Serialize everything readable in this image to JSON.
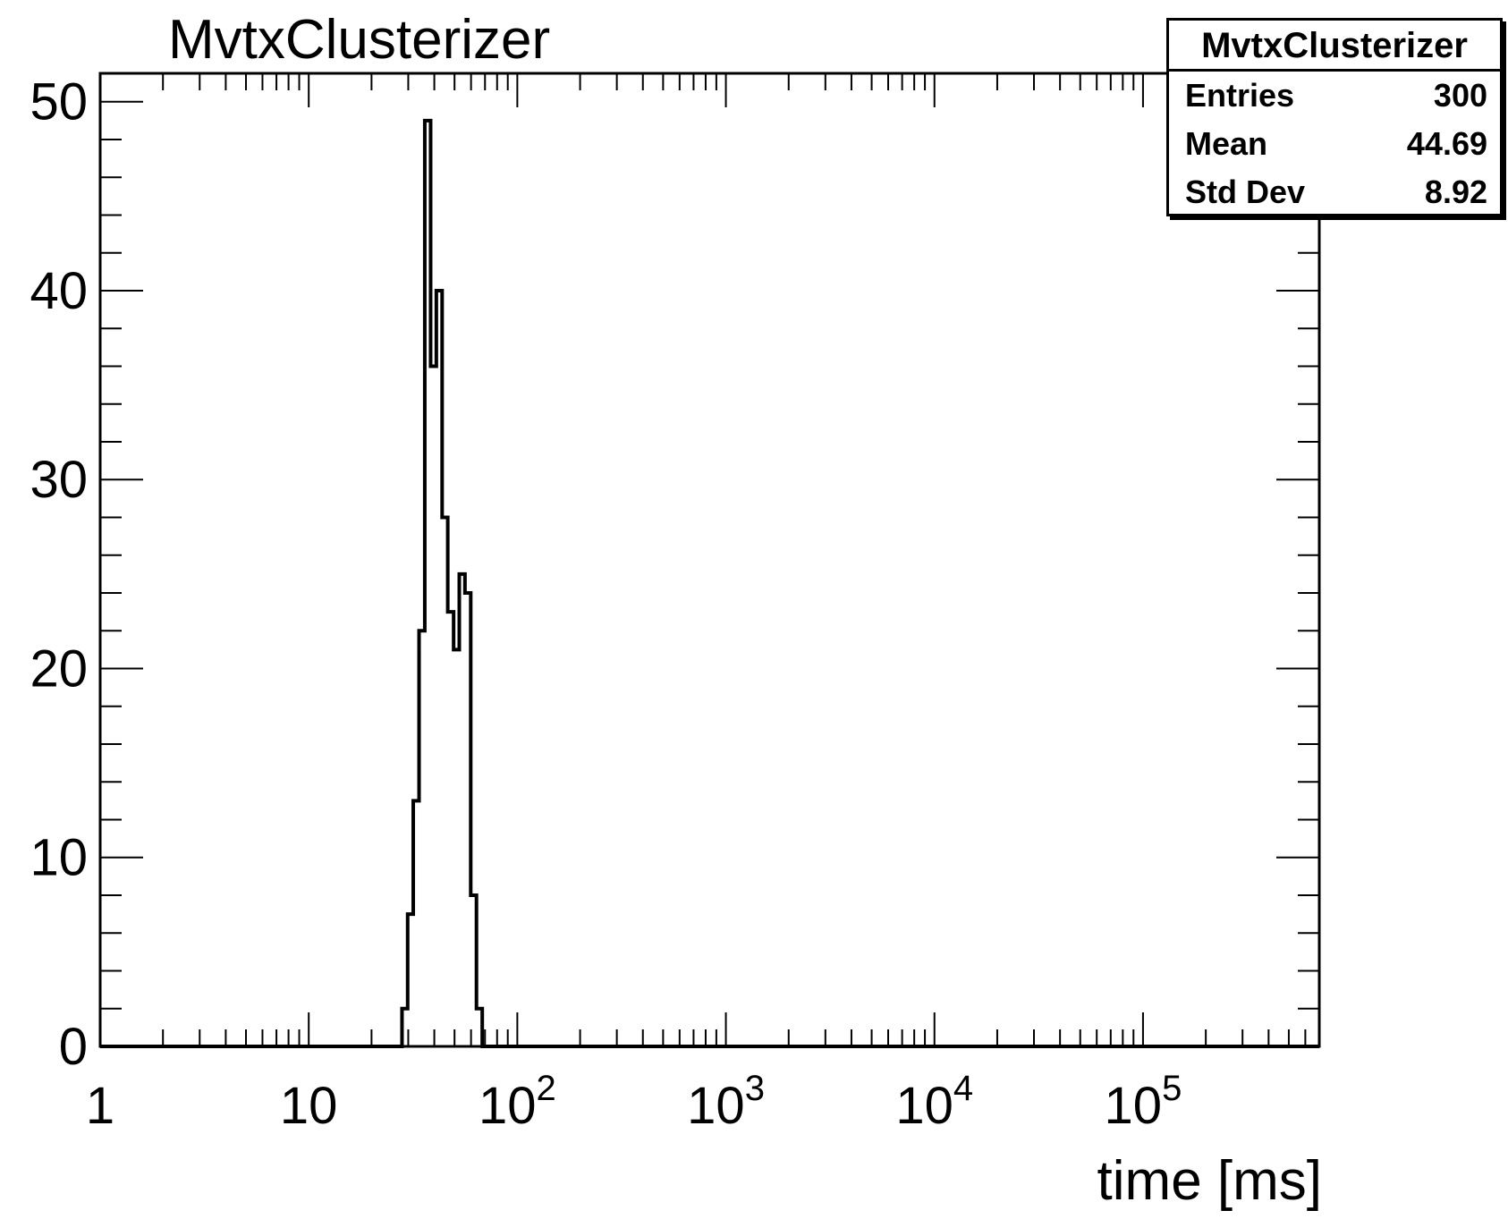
{
  "chart_data": {
    "type": "bar",
    "histogram": true,
    "title": "MvtxClusterizer",
    "xlabel": "time [ms]",
    "ylabel": "",
    "xscale": "log",
    "xlim": [
      1,
      700000
    ],
    "ylim": [
      0,
      51.5
    ],
    "grid": false,
    "legend": "stats box top-right",
    "x_tick_labels": [
      {
        "value": 1,
        "base": "1",
        "exp": ""
      },
      {
        "value": 10,
        "base": "10",
        "exp": ""
      },
      {
        "value": 100,
        "base": "10",
        "exp": "2"
      },
      {
        "value": 1000,
        "base": "10",
        "exp": "3"
      },
      {
        "value": 10000,
        "base": "10",
        "exp": "4"
      },
      {
        "value": 100000,
        "base": "10",
        "exp": "5"
      }
    ],
    "y_ticks": [
      0,
      10,
      20,
      30,
      40,
      50
    ],
    "bins": [
      {
        "lo": 28.0,
        "hi": 29.8,
        "count": 2
      },
      {
        "lo": 29.8,
        "hi": 31.7,
        "count": 7
      },
      {
        "lo": 31.7,
        "hi": 33.8,
        "count": 13
      },
      {
        "lo": 33.8,
        "hi": 36.0,
        "count": 22
      },
      {
        "lo": 36.0,
        "hi": 38.4,
        "count": 49
      },
      {
        "lo": 38.4,
        "hi": 40.9,
        "count": 36
      },
      {
        "lo": 40.9,
        "hi": 43.6,
        "count": 40
      },
      {
        "lo": 43.6,
        "hi": 46.4,
        "count": 28
      },
      {
        "lo": 46.4,
        "hi": 49.5,
        "count": 23
      },
      {
        "lo": 49.5,
        "hi": 52.7,
        "count": 21
      },
      {
        "lo": 52.7,
        "hi": 56.1,
        "count": 25
      },
      {
        "lo": 56.1,
        "hi": 59.8,
        "count": 24
      },
      {
        "lo": 59.8,
        "hi": 63.7,
        "count": 8
      },
      {
        "lo": 63.7,
        "hi": 67.9,
        "count": 2
      }
    ],
    "line_color": "#000000"
  },
  "stats": {
    "title": "MvtxClusterizer",
    "rows": [
      {
        "label": "Entries",
        "value": "300"
      },
      {
        "label": "Mean",
        "value": "44.69"
      },
      {
        "label": "Std Dev",
        "value": "8.92"
      }
    ]
  }
}
